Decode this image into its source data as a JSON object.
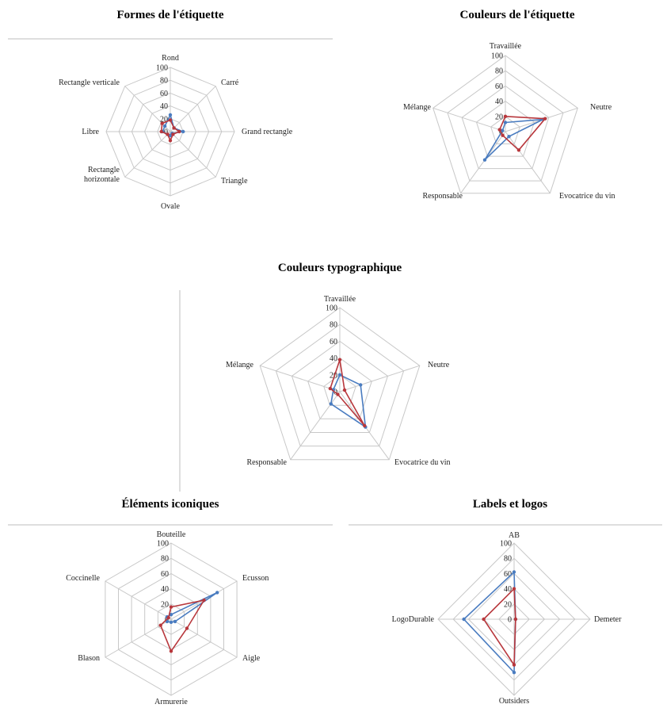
{
  "colors": {
    "series_blue": "#4a7cc0",
    "series_red": "#b8373c",
    "grid": "#c8c8c8"
  },
  "chart_data": [
    {
      "type": "radar",
      "title": "Formes de l'étiquette",
      "axes": [
        "Rond",
        "Carré",
        "Grand rectangle",
        "Triangle",
        "Ovale",
        "Rectangle horizontale",
        "Libre",
        "Rectangle verticale"
      ],
      "ticks": [
        "0",
        "20",
        "40",
        "60",
        "80",
        "100"
      ],
      "rlim": [
        0,
        100
      ],
      "series": [
        {
          "color": "#4a7cc0",
          "values": [
            26,
            8,
            20,
            4,
            6,
            6,
            12,
            12
          ]
        },
        {
          "color": "#b8373c",
          "values": [
            18,
            8,
            14,
            6,
            14,
            6,
            14,
            18
          ]
        }
      ]
    },
    {
      "type": "radar",
      "title": "Couleurs de l'étiquette",
      "axes": [
        "Travaillée",
        "Neutre",
        "Evocatrice du vin",
        "Responsable",
        "Mélange"
      ],
      "ticks": [
        "0",
        "20",
        "40",
        "60",
        "80",
        "100"
      ],
      "rlim": [
        0,
        100
      ],
      "series": [
        {
          "color": "#4a7cc0",
          "values": [
            12,
            52,
            8,
            46,
            4
          ]
        },
        {
          "color": "#b8373c",
          "values": [
            20,
            55,
            30,
            6,
            8
          ]
        }
      ]
    },
    {
      "type": "radar",
      "title": "Couleurs typographique",
      "axes": [
        "Travaillée",
        "Neutre",
        "Evocatrice du vin",
        "Responsable",
        "Mélange"
      ],
      "ticks": [
        "0",
        "20",
        "40",
        "60",
        "80",
        "100"
      ],
      "rlim": [
        0,
        100
      ],
      "series": [
        {
          "color": "#4a7cc0",
          "values": [
            20,
            26,
            52,
            18,
            8
          ]
        },
        {
          "color": "#b8373c",
          "values": [
            38,
            6,
            50,
            4,
            12
          ]
        }
      ]
    },
    {
      "type": "radar",
      "title": "Éléments iconiques",
      "axes": [
        "Bouteille",
        "Ecusson",
        "Aigle",
        "Armurerie",
        "Blason",
        "Coccinelle"
      ],
      "ticks": [
        "0",
        "20",
        "40",
        "60",
        "80",
        "100"
      ],
      "rlim": [
        0,
        100
      ],
      "series": [
        {
          "color": "#4a7cc0",
          "values": [
            6,
            70,
            6,
            4,
            6,
            6
          ]
        },
        {
          "color": "#b8373c",
          "values": [
            16,
            50,
            24,
            42,
            16,
            4
          ]
        }
      ]
    },
    {
      "type": "radar",
      "title": "Labels et logos",
      "axes": [
        "AB",
        "Demeter",
        "Outsiders",
        "LogoDurable"
      ],
      "ticks": [
        "0",
        "20",
        "40",
        "60",
        "80",
        "100"
      ],
      "rlim": [
        0,
        100
      ],
      "series": [
        {
          "color": "#4a7cc0",
          "values": [
            62,
            2,
            70,
            66
          ]
        },
        {
          "color": "#b8373c",
          "values": [
            40,
            2,
            60,
            40
          ]
        }
      ]
    }
  ]
}
